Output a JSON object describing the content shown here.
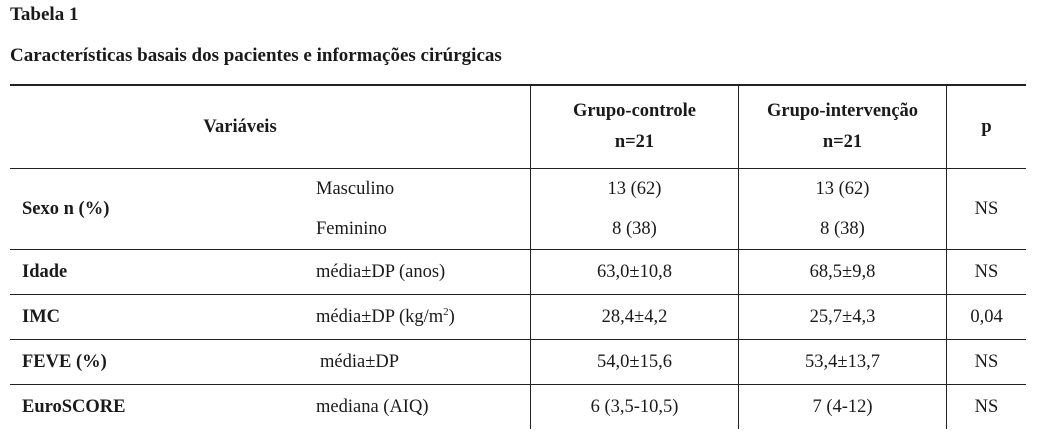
{
  "title": "Tabela 1",
  "subtitle": "Características basais dos pacientes e informações cirúrgicas",
  "header": {
    "variables": "Variáveis",
    "group_control_line1": "Grupo-controle",
    "group_control_line2": "n=21",
    "group_intervention_line1": "Grupo-intervenção",
    "group_intervention_line2": "n=21",
    "p": "p"
  },
  "rows": {
    "sexo": {
      "label": "Sexo n (%)",
      "masc_label": "Masculino",
      "masc_control": "13 (62)",
      "masc_intervention": "13 (62)",
      "fem_label": "Feminino",
      "fem_control": "8 (38)",
      "fem_intervention": "8 (38)",
      "p": "NS"
    },
    "idade": {
      "label": "Idade",
      "measure": "média±DP (anos)",
      "control": "63,0±10,8",
      "intervention": "68,5±9,8",
      "p": "NS"
    },
    "imc": {
      "label": "IMC",
      "measure_prefix": "média±DP (kg/m",
      "measure_sup": "2",
      "measure_suffix": ")",
      "control": "28,4±4,2",
      "intervention": "25,7±4,3",
      "p": "0,04"
    },
    "feve": {
      "label": "FEVE (%)",
      "measure": "média±DP",
      "control": "54,0±15,6",
      "intervention": "53,4±13,7",
      "p": "NS"
    },
    "euroscore": {
      "label": "EuroSCORE",
      "measure": "mediana (AIQ)",
      "control": "6 (3,5-10,5)",
      "intervention": "7 (4-12)",
      "p": "NS"
    }
  }
}
